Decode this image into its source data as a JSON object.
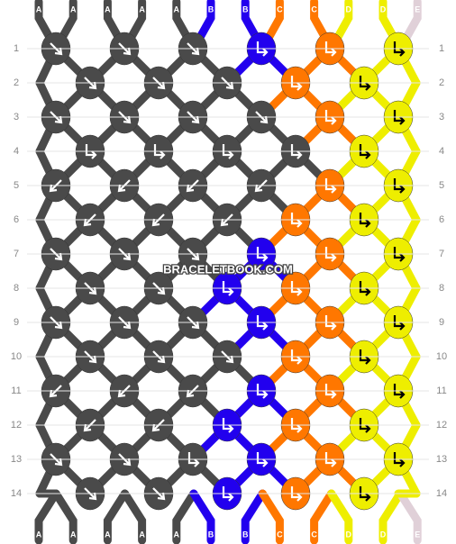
{
  "strings": [
    "A",
    "A",
    "A",
    "A",
    "A",
    "B",
    "B",
    "C",
    "C",
    "D",
    "D",
    "E"
  ],
  "palette": {
    "A": {
      "fill": "#4a4a4a",
      "arrow": "#ffffff"
    },
    "B": {
      "fill": "#2200ee",
      "arrow": "#ffffff"
    },
    "C": {
      "fill": "#ff7700",
      "arrow": "#ffffff"
    },
    "D": {
      "fill": "#eeee00",
      "arrow": "#000000"
    },
    "E": {
      "fill": "#e0d0d8",
      "arrow": "#000000"
    }
  },
  "rows": [
    {
      "label": "1",
      "knots": [
        {
          "color": "A",
          "type": "f"
        },
        {
          "color": "A",
          "type": "f"
        },
        {
          "color": "A",
          "type": "f"
        },
        {
          "color": "B",
          "type": "fb"
        },
        {
          "color": "C",
          "type": "fb"
        },
        {
          "color": "D",
          "type": "fb"
        }
      ]
    },
    {
      "label": "2",
      "knots": [
        {
          "color": "A",
          "type": "f"
        },
        {
          "color": "A",
          "type": "f"
        },
        {
          "color": "A",
          "type": "f"
        },
        {
          "color": "C",
          "type": "fb"
        },
        {
          "color": "D",
          "type": "fb"
        }
      ]
    },
    {
      "label": "3",
      "knots": [
        {
          "color": "A",
          "type": "f"
        },
        {
          "color": "A",
          "type": "f"
        },
        {
          "color": "A",
          "type": "f"
        },
        {
          "color": "A",
          "type": "f"
        },
        {
          "color": "C",
          "type": "fb"
        },
        {
          "color": "D",
          "type": "fb"
        }
      ]
    },
    {
      "label": "4",
      "knots": [
        {
          "color": "A",
          "type": "fb"
        },
        {
          "color": "A",
          "type": "fb"
        },
        {
          "color": "A",
          "type": "fb"
        },
        {
          "color": "A",
          "type": "fb"
        },
        {
          "color": "D",
          "type": "fb"
        }
      ]
    },
    {
      "label": "5",
      "knots": [
        {
          "color": "A",
          "type": "b"
        },
        {
          "color": "A",
          "type": "b"
        },
        {
          "color": "A",
          "type": "b"
        },
        {
          "color": "A",
          "type": "b"
        },
        {
          "color": "C",
          "type": "fb"
        },
        {
          "color": "D",
          "type": "fb"
        }
      ]
    },
    {
      "label": "6",
      "knots": [
        {
          "color": "A",
          "type": "b"
        },
        {
          "color": "A",
          "type": "b"
        },
        {
          "color": "A",
          "type": "b"
        },
        {
          "color": "C",
          "type": "fb"
        },
        {
          "color": "D",
          "type": "fb"
        }
      ]
    },
    {
      "label": "7",
      "knots": [
        {
          "color": "A",
          "type": "f"
        },
        {
          "color": "A",
          "type": "f"
        },
        {
          "color": "A",
          "type": "f"
        },
        {
          "color": "B",
          "type": "fb"
        },
        {
          "color": "C",
          "type": "fb"
        },
        {
          "color": "D",
          "type": "fb"
        }
      ]
    },
    {
      "label": "8",
      "knots": [
        {
          "color": "A",
          "type": "f"
        },
        {
          "color": "A",
          "type": "f"
        },
        {
          "color": "B",
          "type": "fb"
        },
        {
          "color": "C",
          "type": "fb"
        },
        {
          "color": "D",
          "type": "fb"
        }
      ]
    },
    {
      "label": "9",
      "knots": [
        {
          "color": "A",
          "type": "f"
        },
        {
          "color": "A",
          "type": "f"
        },
        {
          "color": "A",
          "type": "f"
        },
        {
          "color": "B",
          "type": "fb"
        },
        {
          "color": "C",
          "type": "fb"
        },
        {
          "color": "D",
          "type": "fb"
        }
      ]
    },
    {
      "label": "10",
      "knots": [
        {
          "color": "A",
          "type": "f"
        },
        {
          "color": "A",
          "type": "f"
        },
        {
          "color": "A",
          "type": "f"
        },
        {
          "color": "C",
          "type": "fb"
        },
        {
          "color": "D",
          "type": "fb"
        }
      ]
    },
    {
      "label": "11",
      "knots": [
        {
          "color": "A",
          "type": "b"
        },
        {
          "color": "A",
          "type": "b"
        },
        {
          "color": "A",
          "type": "b"
        },
        {
          "color": "B",
          "type": "fb"
        },
        {
          "color": "C",
          "type": "fb"
        },
        {
          "color": "D",
          "type": "fb"
        }
      ]
    },
    {
      "label": "12",
      "knots": [
        {
          "color": "A",
          "type": "b"
        },
        {
          "color": "A",
          "type": "b"
        },
        {
          "color": "B",
          "type": "fb"
        },
        {
          "color": "C",
          "type": "fb"
        },
        {
          "color": "D",
          "type": "fb"
        }
      ]
    },
    {
      "label": "13",
      "knots": [
        {
          "color": "A",
          "type": "f"
        },
        {
          "color": "A",
          "type": "f"
        },
        {
          "color": "A",
          "type": "fb"
        },
        {
          "color": "B",
          "type": "fb"
        },
        {
          "color": "C",
          "type": "fb"
        },
        {
          "color": "D",
          "type": "fb"
        }
      ]
    },
    {
      "label": "14",
      "knots": [
        {
          "color": "A",
          "type": "f"
        },
        {
          "color": "A",
          "type": "f"
        },
        {
          "color": "B",
          "type": "fb"
        },
        {
          "color": "C",
          "type": "fb"
        },
        {
          "color": "D",
          "type": "fb"
        }
      ]
    }
  ],
  "watermark": "BRACELETBOOK.COM"
}
